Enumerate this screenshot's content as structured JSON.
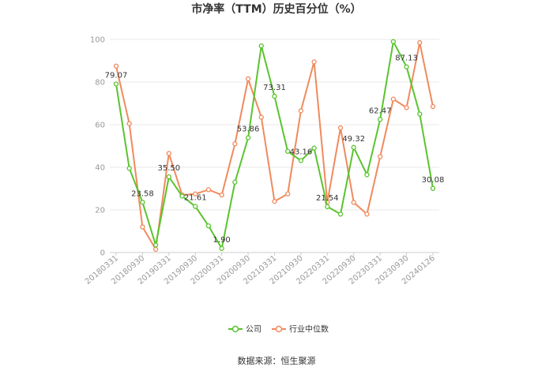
{
  "chart_data": {
    "type": "line",
    "title": "市净率（TTM）历史百分位（%）",
    "source": "数据来源：恒生聚源",
    "ylim": [
      0,
      100
    ],
    "yticks": [
      0,
      20,
      40,
      60,
      80,
      100
    ],
    "grid": true,
    "legend_position": "bottom-center",
    "x": [
      "20180331",
      "20180630",
      "20180930",
      "20181231",
      "20190331",
      "20190630",
      "20190930",
      "20191231",
      "20200331",
      "20200630",
      "20200930",
      "20201231",
      "20210331",
      "20210630",
      "20210930",
      "20211231",
      "20220331",
      "20220630",
      "20220930",
      "20221231",
      "20230331",
      "20230630",
      "20230930",
      "20231231",
      "20240126"
    ],
    "xtick_labels": [
      "20180331",
      "20180930",
      "20190331",
      "20190930",
      "20200331",
      "20200930",
      "20210331",
      "20210930",
      "20220331",
      "20220930",
      "20230331",
      "20230930",
      "20240126"
    ],
    "series": [
      {
        "name": "公司",
        "color": "#5ac42e",
        "values": [
          79.07,
          39.5,
          23.58,
          3.5,
          35.5,
          26.5,
          21.61,
          12.5,
          1.9,
          33.0,
          53.86,
          97.0,
          73.31,
          47.5,
          43.16,
          49.0,
          21.54,
          18.0,
          49.32,
          36.5,
          62.47,
          99.0,
          87.13,
          65.0,
          30.08
        ],
        "labels": {
          "0": "79.07",
          "2": "23.58",
          "4": "35.50",
          "6": "21.61",
          "8": "1.90",
          "10": "53.86",
          "12": "73.31",
          "14": "43.16",
          "16": "21.54",
          "18": "49.32",
          "20": "62.47",
          "22": "87.13",
          "24": "30.08"
        }
      },
      {
        "name": "行业中位数",
        "color": "#f08a5d",
        "values": [
          87.5,
          60.5,
          12.0,
          1.5,
          46.5,
          27.0,
          27.5,
          29.5,
          27.0,
          51.0,
          81.5,
          63.5,
          24.0,
          27.5,
          66.5,
          89.5,
          23.5,
          58.5,
          23.5,
          18.0,
          45.0,
          72.0,
          68.0,
          98.5,
          68.5
        ]
      }
    ]
  }
}
